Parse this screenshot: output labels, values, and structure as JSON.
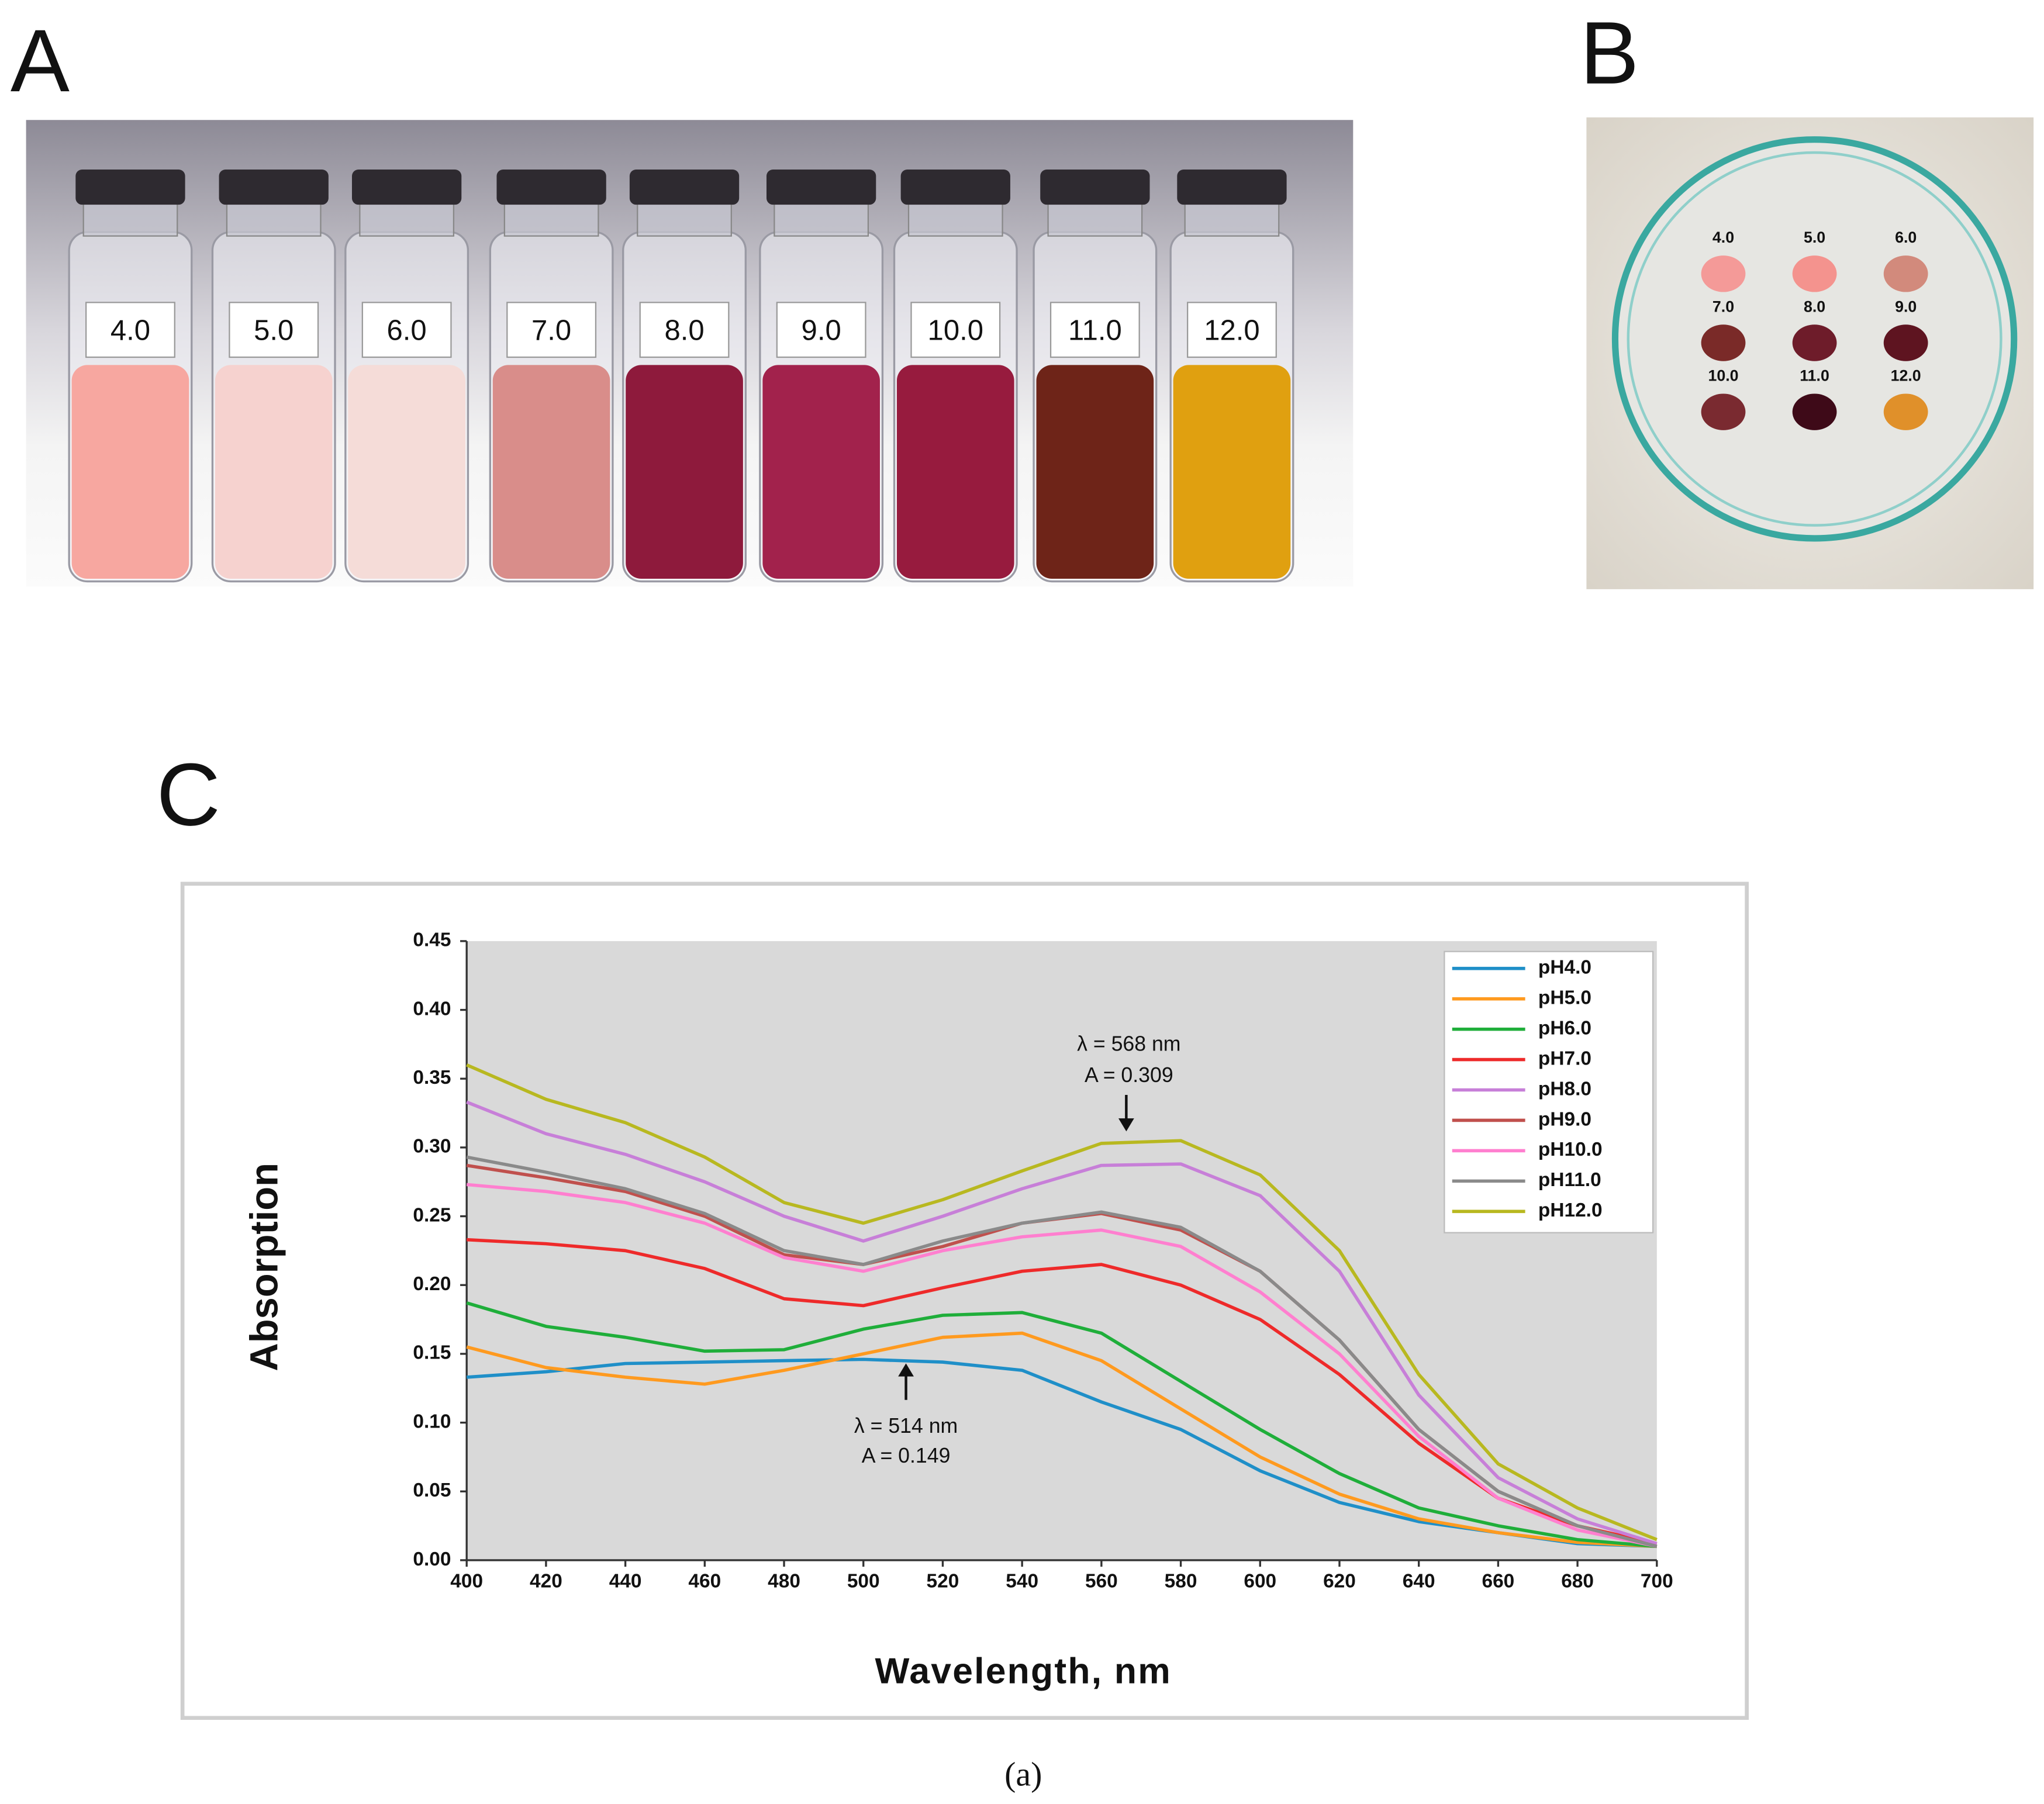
{
  "photo_a": {
    "label": "A",
    "vials": [
      "4.0",
      "5.0",
      "6.0",
      "7.0",
      "8.0",
      "9.0",
      "10.0",
      "11.0",
      "12.0"
    ]
  },
  "photo_b": {
    "label": "B",
    "spots": [
      "4.0",
      "5.0",
      "6.0",
      "7.0",
      "8.0",
      "9.0",
      "10.0",
      "11.0",
      "12.0"
    ]
  },
  "caption": "(a)",
  "chart_data": {
    "type": "line",
    "panel_label": "C",
    "xlabel": "Wavelength, nm",
    "ylabel": "Absorption",
    "x": [
      400,
      420,
      440,
      460,
      480,
      500,
      520,
      540,
      560,
      580,
      600,
      620,
      640,
      660,
      680,
      700
    ],
    "xlim": [
      400,
      700
    ],
    "xticks": [
      400,
      420,
      440,
      460,
      480,
      500,
      520,
      540,
      560,
      580,
      600,
      620,
      640,
      660,
      680,
      700
    ],
    "ylim": [
      0,
      0.45
    ],
    "yticks": [
      {
        "value": 0,
        "label": "0.00"
      },
      {
        "value": 0.05,
        "label": "0.05"
      },
      {
        "value": 0.1,
        "label": "0.10"
      },
      {
        "value": 0.15,
        "label": "0.15"
      },
      {
        "value": 0.2,
        "label": "0.20"
      },
      {
        "value": 0.25,
        "label": "0.25"
      },
      {
        "value": 0.3,
        "label": "0.30"
      },
      {
        "value": 0.35,
        "label": "0.35"
      },
      {
        "value": 0.4,
        "label": "0.40"
      },
      {
        "value": 0.45,
        "label": "0.45"
      }
    ],
    "legend": "upper right",
    "annotations": [
      "λ = 568 nm",
      "A = 0.309",
      "λ = 514 nm",
      "A = 0.149"
    ],
    "series": [
      {
        "name": "pH4.0",
        "color": "#1f8fc8",
        "values": [
          0.133,
          0.137,
          0.143,
          0.144,
          0.145,
          0.146,
          0.144,
          0.138,
          0.115,
          0.095,
          0.065,
          0.042,
          0.028,
          0.02,
          0.012,
          0.01
        ]
      },
      {
        "name": "pH5.0",
        "color": "#ff9a1f",
        "values": [
          0.155,
          0.14,
          0.133,
          0.128,
          0.138,
          0.15,
          0.162,
          0.165,
          0.145,
          0.11,
          0.075,
          0.048,
          0.03,
          0.02,
          0.013,
          0.01
        ]
      },
      {
        "name": "pH6.0",
        "color": "#1fae3a",
        "values": [
          0.187,
          0.17,
          0.162,
          0.152,
          0.153,
          0.168,
          0.178,
          0.18,
          0.165,
          0.13,
          0.095,
          0.063,
          0.038,
          0.025,
          0.015,
          0.01
        ]
      },
      {
        "name": "pH7.0",
        "color": "#ee2a2a",
        "values": [
          0.233,
          0.23,
          0.225,
          0.212,
          0.19,
          0.185,
          0.198,
          0.21,
          0.215,
          0.2,
          0.175,
          0.135,
          0.085,
          0.045,
          0.025,
          0.012
        ]
      },
      {
        "name": "pH8.0",
        "color": "#c77fd8",
        "values": [
          0.333,
          0.31,
          0.295,
          0.275,
          0.25,
          0.232,
          0.25,
          0.27,
          0.287,
          0.288,
          0.265,
          0.21,
          0.12,
          0.06,
          0.03,
          0.012
        ]
      },
      {
        "name": "pH9.0",
        "color": "#c0504d",
        "values": [
          0.287,
          0.278,
          0.268,
          0.25,
          0.222,
          0.215,
          0.228,
          0.245,
          0.252,
          0.24,
          0.21,
          0.16,
          0.095,
          0.05,
          0.025,
          0.01
        ]
      },
      {
        "name": "pH10.0",
        "color": "#ff7fcf",
        "values": [
          0.273,
          0.268,
          0.26,
          0.245,
          0.22,
          0.21,
          0.225,
          0.235,
          0.24,
          0.228,
          0.195,
          0.15,
          0.09,
          0.045,
          0.022,
          0.01
        ]
      },
      {
        "name": "pH11.0",
        "color": "#8a8a8a",
        "values": [
          0.293,
          0.282,
          0.27,
          0.252,
          0.225,
          0.215,
          0.232,
          0.245,
          0.253,
          0.242,
          0.21,
          0.16,
          0.095,
          0.05,
          0.025,
          0.01
        ]
      },
      {
        "name": "pH12.0",
        "color": "#b8b820",
        "values": [
          0.36,
          0.335,
          0.318,
          0.293,
          0.26,
          0.245,
          0.262,
          0.283,
          0.303,
          0.305,
          0.28,
          0.225,
          0.135,
          0.07,
          0.038,
          0.015
        ]
      }
    ]
  }
}
